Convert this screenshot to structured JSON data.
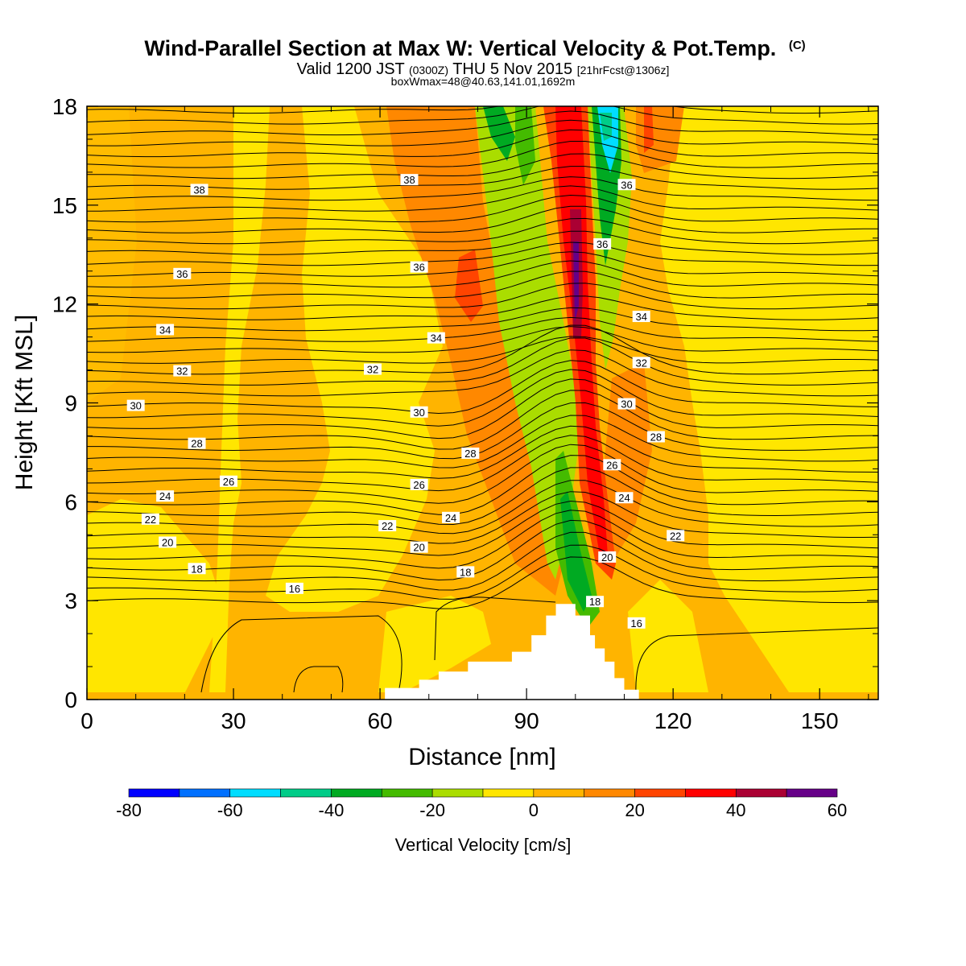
{
  "title": "Wind-Parallel Section at Max W: Vertical Velocity & Pot.Temp.",
  "title_suffix": "(C)",
  "subtitle": {
    "part1": "Valid 1200 JST",
    "part2": "(0300Z)",
    "part3": "THU 5 Nov 2015",
    "part4": "[21hrFcst@1306z]"
  },
  "subtitle2": "boxWmax=48@40.63,141.01,1692m",
  "chart_data": {
    "type": "heatmap",
    "xlabel": "Distance [nm]",
    "ylabel": "Height [Kft MSL]",
    "xlim": [
      0,
      162
    ],
    "ylim": [
      0,
      18
    ],
    "xticks": [
      0,
      30,
      60,
      90,
      120,
      150
    ],
    "yticks": [
      0,
      3,
      6,
      9,
      12,
      15,
      18
    ],
    "colorbar": {
      "label": "Vertical Velocity [cm/s]",
      "levels": [
        -80,
        -70,
        -60,
        -50,
        -40,
        -30,
        -20,
        -10,
        0,
        10,
        20,
        30,
        40,
        50,
        60
      ],
      "colors": [
        "#0000ff",
        "#0070ff",
        "#00ddff",
        "#00cc88",
        "#00aa22",
        "#44bb00",
        "#aadd00",
        "#ffe600",
        "#ffb400",
        "#ff8800",
        "#ff4400",
        "#ff0000",
        "#aa0033",
        "#660088"
      ],
      "ticks": [
        -80,
        -60,
        -40,
        -20,
        0,
        20,
        40,
        60
      ]
    },
    "contour_labels": [
      {
        "value": "38",
        "x": 23,
        "y": 15.45
      },
      {
        "value": "38",
        "x": 66,
        "y": 15.75
      },
      {
        "value": "36",
        "x": 110.5,
        "y": 15.6
      },
      {
        "value": "36",
        "x": 19.5,
        "y": 12.9
      },
      {
        "value": "36",
        "x": 68,
        "y": 13.1
      },
      {
        "value": "36",
        "x": 105.5,
        "y": 13.8
      },
      {
        "value": "34",
        "x": 16,
        "y": 11.2
      },
      {
        "value": "34",
        "x": 71.5,
        "y": 10.95
      },
      {
        "value": "34",
        "x": 113.5,
        "y": 11.6
      },
      {
        "value": "32",
        "x": 19.5,
        "y": 9.95
      },
      {
        "value": "32",
        "x": 58.5,
        "y": 10.0
      },
      {
        "value": "32",
        "x": 113.5,
        "y": 10.2
      },
      {
        "value": "30",
        "x": 10,
        "y": 8.9
      },
      {
        "value": "30",
        "x": 68,
        "y": 8.7
      },
      {
        "value": "30",
        "x": 110.5,
        "y": 8.95
      },
      {
        "value": "28",
        "x": 22.5,
        "y": 7.75
      },
      {
        "value": "28",
        "x": 78.5,
        "y": 7.45
      },
      {
        "value": "28",
        "x": 116.5,
        "y": 7.95
      },
      {
        "value": "26",
        "x": 29,
        "y": 6.6
      },
      {
        "value": "26",
        "x": 68,
        "y": 6.5
      },
      {
        "value": "26",
        "x": 107.5,
        "y": 7.1
      },
      {
        "value": "24",
        "x": 16,
        "y": 6.15
      },
      {
        "value": "24",
        "x": 74.5,
        "y": 5.5
      },
      {
        "value": "24",
        "x": 110,
        "y": 6.1
      },
      {
        "value": "22",
        "x": 13,
        "y": 5.45
      },
      {
        "value": "22",
        "x": 61.5,
        "y": 5.25
      },
      {
        "value": "22",
        "x": 120.5,
        "y": 4.95
      },
      {
        "value": "20",
        "x": 16.5,
        "y": 4.75
      },
      {
        "value": "20",
        "x": 68,
        "y": 4.6
      },
      {
        "value": "20",
        "x": 106.5,
        "y": 4.3
      },
      {
        "value": "18",
        "x": 22.5,
        "y": 3.95
      },
      {
        "value": "18",
        "x": 77.5,
        "y": 3.85
      },
      {
        "value": "18",
        "x": 104,
        "y": 2.95
      },
      {
        "value": "16",
        "x": 42.5,
        "y": 3.35
      },
      {
        "value": "16",
        "x": 112.5,
        "y": 2.3
      }
    ],
    "terrain_profile": [
      [
        61,
        0
      ],
      [
        61,
        0.35
      ],
      [
        68,
        0.35
      ],
      [
        68,
        0.6
      ],
      [
        72,
        0.6
      ],
      [
        72,
        0.85
      ],
      [
        78,
        0.85
      ],
      [
        78,
        1.15
      ],
      [
        87,
        1.15
      ],
      [
        87,
        1.45
      ],
      [
        91,
        1.45
      ],
      [
        91,
        1.95
      ],
      [
        94,
        1.95
      ],
      [
        94,
        2.55
      ],
      [
        96,
        2.55
      ],
      [
        96,
        2.9
      ],
      [
        100,
        2.9
      ],
      [
        100,
        2.55
      ],
      [
        103,
        2.55
      ],
      [
        103,
        1.95
      ],
      [
        104,
        1.95
      ],
      [
        104,
        1.55
      ],
      [
        106,
        1.55
      ],
      [
        106,
        1.15
      ],
      [
        108,
        1.15
      ],
      [
        108,
        0.65
      ],
      [
        110,
        0.65
      ],
      [
        110,
        0.3
      ],
      [
        113,
        0.3
      ],
      [
        113,
        0
      ]
    ]
  }
}
